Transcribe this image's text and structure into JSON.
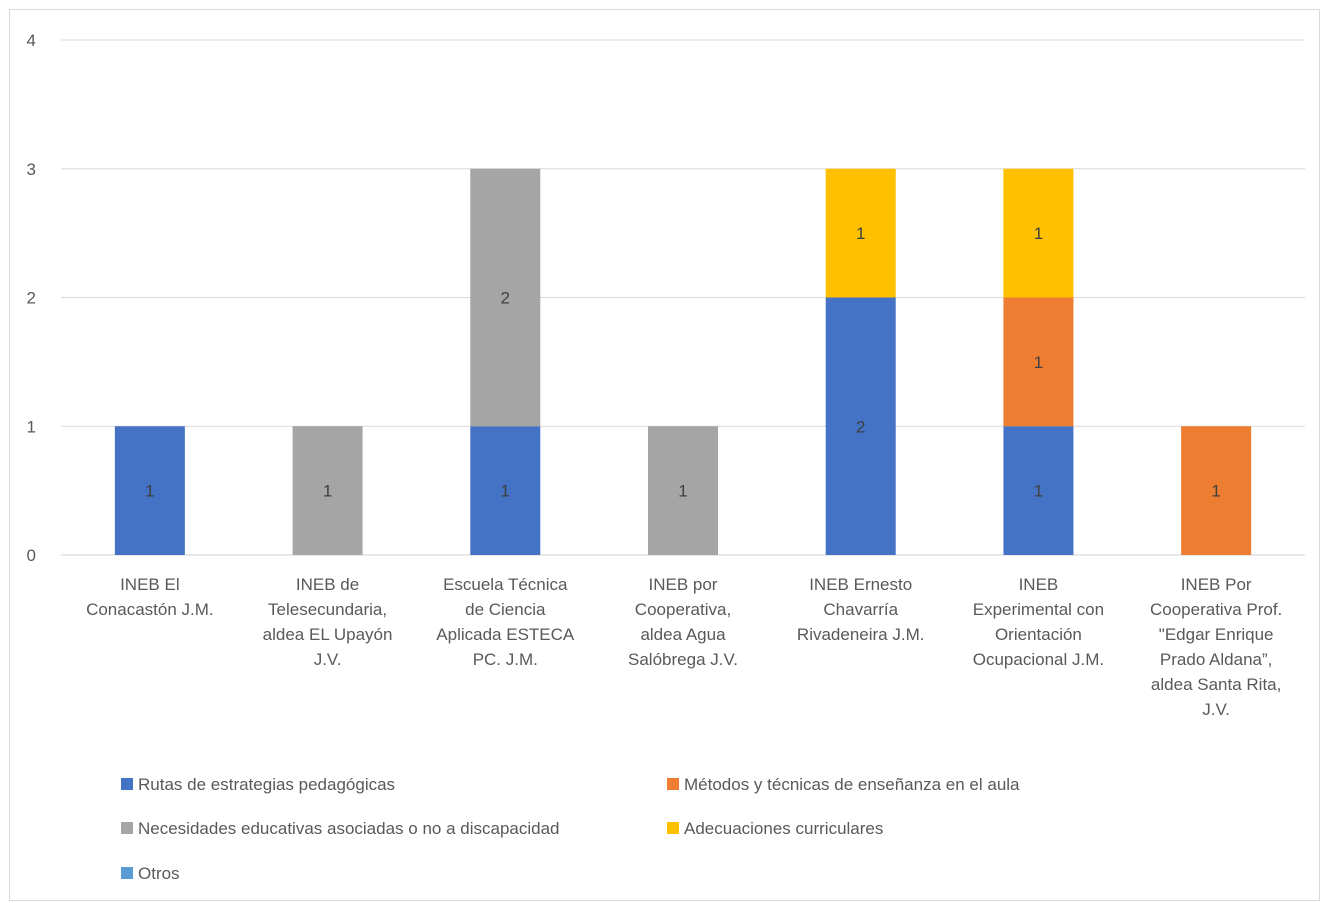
{
  "chart_data": {
    "type": "bar",
    "stacked": true,
    "categories": [
      [
        "INEB El",
        "Conacastón J.M."
      ],
      [
        "INEB de",
        "Telesecundaria,",
        "aldea EL Upayón",
        "J.V."
      ],
      [
        "Escuela Técnica",
        "de Ciencia",
        "Aplicada ESTECA",
        "PC. J.M."
      ],
      [
        "INEB por",
        "Cooperativa,",
        "aldea Agua",
        "Salóbrega J.V."
      ],
      [
        "INEB Ernesto",
        "Chavarría",
        "Rivadeneira J.M."
      ],
      [
        "INEB",
        "Experimental con",
        "Orientación",
        "Ocupacional J.M."
      ],
      [
        "INEB Por",
        "Cooperativa Prof.",
        "\"Edgar Enrique",
        "Prado Aldana”,",
        "aldea Santa Rita,",
        "J.V."
      ]
    ],
    "series": [
      {
        "name": "Rutas de estrategias pedagógicas",
        "color": "#4472c4",
        "values": [
          1,
          0,
          1,
          0,
          2,
          1,
          0
        ]
      },
      {
        "name": "Métodos y técnicas de enseñanza en el aula",
        "color": "#ed7d31",
        "values": [
          0,
          0,
          0,
          0,
          0,
          1,
          1
        ]
      },
      {
        "name": "Necesidades educativas asociadas o no a discapacidad",
        "color": "#a5a5a5",
        "values": [
          0,
          1,
          2,
          1,
          0,
          0,
          0
        ]
      },
      {
        "name": "Adecuaciones curriculares",
        "color": "#ffc000",
        "values": [
          0,
          0,
          0,
          0,
          1,
          1,
          0
        ]
      },
      {
        "name": "Otros",
        "color": "#5b9bd5",
        "values": [
          0,
          0,
          0,
          0,
          0,
          0,
          0
        ]
      }
    ],
    "yticks": [
      "0",
      "1",
      "2",
      "3",
      "4"
    ],
    "ylim": [
      0,
      4
    ],
    "grid": true,
    "legend_position": "bottom",
    "data_labels": true
  }
}
